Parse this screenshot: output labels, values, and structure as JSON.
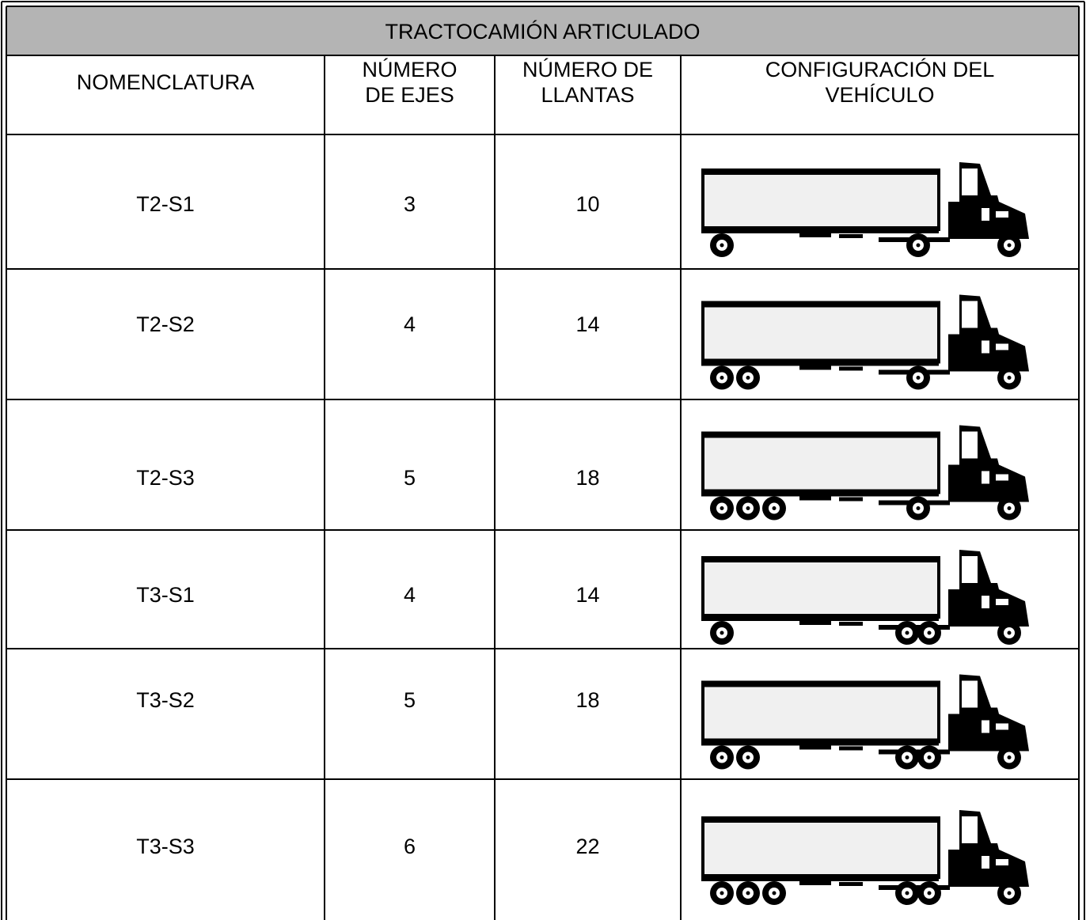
{
  "title": "TRACTOCAMIÓN ARTICULADO",
  "headers": [
    "NOMENCLATURA",
    "NÚMERO\nDE EJES",
    "NÚMERO DE\nLLANTAS",
    "CONFIGURACIÓN DEL\nVEHÍCULO"
  ],
  "rows": [
    [
      "T2-S1",
      3,
      10
    ],
    [
      "T2-S2",
      4,
      14
    ],
    [
      "T2-S3",
      5,
      18
    ],
    [
      "T3-S1",
      4,
      14
    ],
    [
      "T3-S2",
      5,
      18
    ],
    [
      "T3-S3",
      6,
      22
    ]
  ]
}
